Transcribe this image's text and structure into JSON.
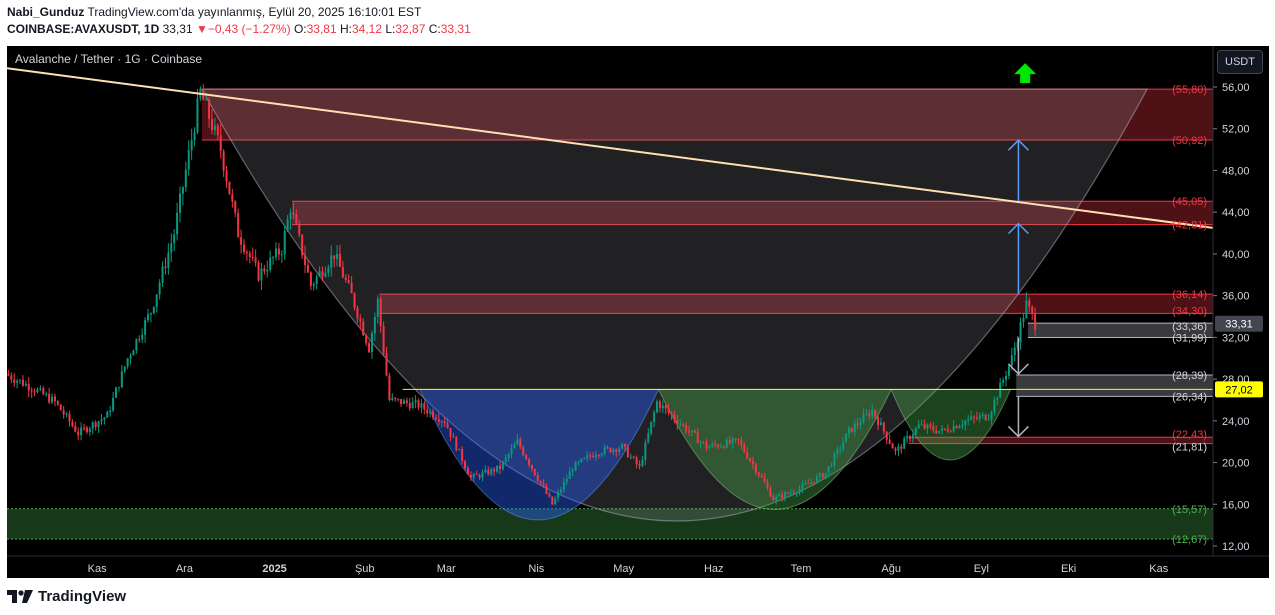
{
  "header": {
    "user": "Nabi_Gunduz",
    "published": "TradingView.com'da yayınlanmış, Eylül 20, 2025 16:10:01 EST",
    "symbol": "COINBASE:AVAXUSDT, 1D",
    "last": "33,31",
    "arrow": "▼",
    "change": "−0,43 (−1.27%)",
    "o_label": "O:",
    "o": "33,81",
    "h_label": "H:",
    "h": "34,12",
    "l_label": "L:",
    "l": "32,87",
    "c_label": "C:",
    "c": "33,31"
  },
  "legend": "Avalanche / Tether · 1G · Coinbase",
  "currency_button": "USDT",
  "brand": "TradingView",
  "colors": {
    "background": "#000000",
    "up": "#089981",
    "down": "#f23645",
    "zone_red": "#f23645",
    "zone_green": "#4caf50",
    "trendline": "#ffe0b2",
    "arrow_blue": "#5b9cf6",
    "arrow_green": "#00e600",
    "price_tag": "#ffff00"
  },
  "chart_data": {
    "type": "candlestick",
    "ylim": [
      12,
      58
    ],
    "y_ticks": [
      "12,00",
      "16,00",
      "20,00",
      "24,00",
      "28,00",
      "32,00",
      "36,00",
      "40,00",
      "44,00",
      "48,00",
      "52,00",
      "56,00"
    ],
    "x_labels": [
      "Kas",
      "Ara",
      "2025",
      "Şub",
      "Mar",
      "Nis",
      "May",
      "Haz",
      "Tem",
      "Ağu",
      "Eyl",
      "Eki",
      "Kas"
    ],
    "price_path": [
      {
        "date": "2024-10-01",
        "price": 28.5
      },
      {
        "date": "2024-10-10",
        "price": 27.2
      },
      {
        "date": "2024-10-18",
        "price": 25.8
      },
      {
        "date": "2024-10-26",
        "price": 22.8
      },
      {
        "date": "2024-11-05",
        "price": 24.5
      },
      {
        "date": "2024-11-12",
        "price": 30
      },
      {
        "date": "2024-11-20",
        "price": 34.5
      },
      {
        "date": "2024-11-28",
        "price": 42
      },
      {
        "date": "2024-12-04",
        "price": 51
      },
      {
        "date": "2024-12-07",
        "price": 55.5
      },
      {
        "date": "2024-12-14",
        "price": 50
      },
      {
        "date": "2024-12-20",
        "price": 42
      },
      {
        "date": "2024-12-27",
        "price": 38
      },
      {
        "date": "2025-01-04",
        "price": 40.5
      },
      {
        "date": "2025-01-07",
        "price": 44.5
      },
      {
        "date": "2025-01-14",
        "price": 37
      },
      {
        "date": "2025-01-22",
        "price": 40
      },
      {
        "date": "2025-01-28",
        "price": 36
      },
      {
        "date": "2025-02-03",
        "price": 31
      },
      {
        "date": "2025-02-06",
        "price": 35.5
      },
      {
        "date": "2025-02-10",
        "price": 26
      },
      {
        "date": "2025-02-20",
        "price": 25.5
      },
      {
        "date": "2025-03-01",
        "price": 24
      },
      {
        "date": "2025-03-10",
        "price": 18.5
      },
      {
        "date": "2025-03-20",
        "price": 19.5
      },
      {
        "date": "2025-03-26",
        "price": 22
      },
      {
        "date": "2025-04-07",
        "price": 16
      },
      {
        "date": "2025-04-14",
        "price": 19.5
      },
      {
        "date": "2025-04-22",
        "price": 21
      },
      {
        "date": "2025-05-01",
        "price": 21.5
      },
      {
        "date": "2025-05-07",
        "price": 19.5
      },
      {
        "date": "2025-05-13",
        "price": 25.8
      },
      {
        "date": "2025-05-22",
        "price": 23.5
      },
      {
        "date": "2025-05-30",
        "price": 21.5
      },
      {
        "date": "2025-06-10",
        "price": 22
      },
      {
        "date": "2025-06-18",
        "price": 18.5
      },
      {
        "date": "2025-06-22",
        "price": 16.5
      },
      {
        "date": "2025-07-01",
        "price": 17.5
      },
      {
        "date": "2025-07-10",
        "price": 19
      },
      {
        "date": "2025-07-18",
        "price": 23
      },
      {
        "date": "2025-07-26",
        "price": 25
      },
      {
        "date": "2025-08-03",
        "price": 21
      },
      {
        "date": "2025-08-11",
        "price": 23.5
      },
      {
        "date": "2025-08-19",
        "price": 23
      },
      {
        "date": "2025-08-27",
        "price": 24
      },
      {
        "date": "2025-09-04",
        "price": 24.5
      },
      {
        "date": "2025-09-12",
        "price": 30
      },
      {
        "date": "2025-09-17",
        "price": 35.2
      },
      {
        "date": "2025-09-20",
        "price": 33.31
      }
    ],
    "levels": [
      {
        "label": "(55,80)",
        "value": 55.8,
        "color": "#f23645"
      },
      {
        "label": "(50,92)",
        "value": 50.92,
        "color": "#f23645"
      },
      {
        "label": "(45,05)",
        "value": 45.05,
        "color": "#f23645"
      },
      {
        "label": "(42,81)",
        "value": 42.81,
        "color": "#f23645"
      },
      {
        "label": "(36,14)",
        "value": 36.14,
        "color": "#f23645"
      },
      {
        "label": "(34,30)",
        "value": 34.3,
        "color": "#f23645"
      },
      {
        "label": "(33,36)",
        "value": 33.36,
        "color": "#d1d4dc"
      },
      {
        "label": "(31,99)",
        "value": 31.99,
        "color": "#d1d4dc"
      },
      {
        "label": "(28,39)",
        "value": 28.39,
        "color": "#d1d4dc"
      },
      {
        "label": "(26,34)",
        "value": 26.34,
        "color": "#d1d4dc"
      },
      {
        "label": "(22,43)",
        "value": 22.43,
        "color": "#f23645"
      },
      {
        "label": "(21,81)",
        "value": 21.81,
        "color": "#d1d4dc"
      },
      {
        "label": "(15,57)",
        "value": 15.57,
        "color": "#4caf50"
      },
      {
        "label": "(12,67)",
        "value": 12.67,
        "color": "#4caf50"
      }
    ],
    "zones": [
      {
        "from": 50.92,
        "to": 55.8,
        "color": "#f23645",
        "start": "2024-12-07"
      },
      {
        "from": 42.81,
        "to": 45.05,
        "color": "#f23645",
        "start": "2025-01-07"
      },
      {
        "from": 34.3,
        "to": 36.14,
        "color": "#f23645",
        "start": "2025-02-06"
      },
      {
        "from": 31.99,
        "to": 33.36,
        "color": "#b2b5be",
        "start": "2025-09-17"
      },
      {
        "from": 26.34,
        "to": 28.39,
        "color": "#b2b5be",
        "start": "2025-09-13"
      },
      {
        "from": 21.81,
        "to": 22.43,
        "color": "#f23645",
        "start": "2025-08-07"
      },
      {
        "from": 12.67,
        "to": 15.57,
        "color": "#4caf50",
        "start": "2024-10-01"
      }
    ],
    "neckline": {
      "value": 27.02,
      "start": "2025-02-14"
    },
    "current_price": {
      "value": 33.31,
      "label": "33,31"
    },
    "neckline_tag": {
      "value": 27.02,
      "label": "27,02"
    }
  }
}
